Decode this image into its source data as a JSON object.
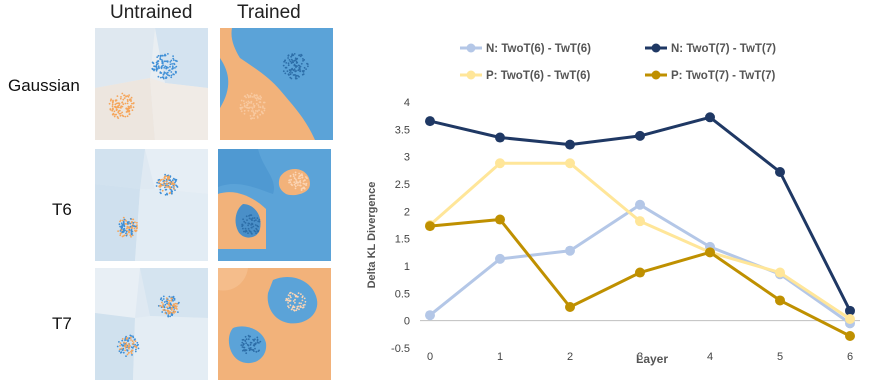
{
  "figure": {
    "column_headers": [
      "Untrained",
      "Trained"
    ],
    "row_headers": [
      "Gaussian",
      "T6",
      "T7"
    ]
  },
  "colors": {
    "cluster_orange": "#f5a55a",
    "cluster_blue": "#3f8fd6",
    "region_orange": "#f2b27a",
    "region_blue": "#5ba3d8",
    "untrained_bg": "#dfe9f2"
  },
  "chart_data": {
    "type": "line",
    "title": "",
    "xlabel": "Layer",
    "ylabel": "Delta KL Divergence",
    "x": [
      0,
      1,
      2,
      3,
      4,
      5,
      6
    ],
    "ylim": [
      -0.5,
      4
    ],
    "yticks": [
      -0.5,
      0,
      0.5,
      1,
      1.5,
      2,
      2.5,
      3,
      3.5,
      4
    ],
    "grid": false,
    "legend_position": "top",
    "series": [
      {
        "name": "N: TwoT(6) - TwT(6)",
        "color": "#b4c7e7",
        "values": [
          0.1,
          1.13,
          1.28,
          2.12,
          1.35,
          0.85,
          -0.05
        ]
      },
      {
        "name": "N: TwoT(7) - TwT(7)",
        "color": "#1f3864",
        "values": [
          3.65,
          3.35,
          3.22,
          3.38,
          3.72,
          2.72,
          0.18
        ]
      },
      {
        "name": "P: TwoT(6) - TwT(6)",
        "color": "#ffe699",
        "values": [
          1.75,
          2.88,
          2.88,
          1.82,
          1.25,
          0.88,
          0.03
        ]
      },
      {
        "name": "P: TwoT(7) - TwT(7)",
        "color": "#bf9000",
        "values": [
          1.73,
          1.85,
          0.25,
          0.88,
          1.25,
          0.37,
          -0.28
        ]
      }
    ]
  }
}
